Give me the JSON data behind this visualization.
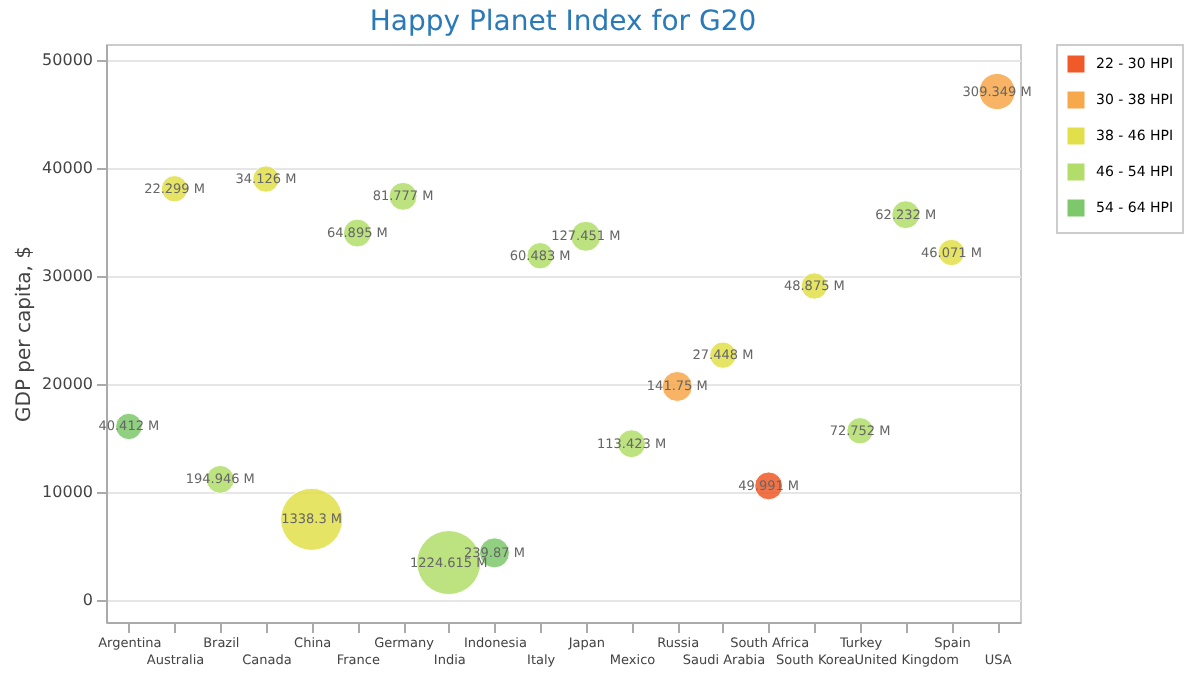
{
  "chart_data": {
    "type": "bubble",
    "title": "Happy Planet Index for G20",
    "ylabel": "GDP per capita, $",
    "categories": [
      "Argentina",
      "Australia",
      "Brazil",
      "Canada",
      "China",
      "France",
      "Germany",
      "India",
      "Indonesia",
      "Italy",
      "Japan",
      "Mexico",
      "Russia",
      "Saudi Arabia",
      "South Africa",
      "South Korea",
      "Turkey",
      "United Kingdom",
      "Spain",
      "USA"
    ],
    "ylim": [
      -2000,
      51500
    ],
    "yticks": [
      0,
      10000,
      20000,
      30000,
      40000,
      50000
    ],
    "grid": "y",
    "legend": "top right",
    "series": [
      {
        "name": "22 - 30 HPI",
        "color": "#f05a28",
        "values": [
          null,
          null,
          null,
          null,
          null,
          null,
          null,
          null,
          null,
          null,
          null,
          null,
          null,
          null,
          10600,
          null,
          null,
          null,
          null,
          null
        ],
        "sizes": [
          null,
          null,
          null,
          null,
          null,
          null,
          null,
          null,
          null,
          null,
          null,
          null,
          null,
          null,
          0.19,
          null,
          null,
          null,
          null,
          null
        ]
      },
      {
        "name": "30 - 38 HPI",
        "color": "#f7a84a",
        "values": [
          null,
          null,
          null,
          null,
          null,
          null,
          null,
          null,
          null,
          null,
          null,
          null,
          19800,
          null,
          null,
          null,
          null,
          null,
          null,
          47100
        ],
        "sizes": [
          null,
          null,
          null,
          null,
          null,
          null,
          null,
          null,
          null,
          null,
          null,
          null,
          0.22,
          null,
          null,
          null,
          null,
          null,
          null,
          0.32
        ]
      },
      {
        "name": "38 - 46 HPI",
        "color": "#e2e04a",
        "values": [
          null,
          38100,
          null,
          39000,
          7500,
          null,
          null,
          null,
          null,
          null,
          null,
          null,
          null,
          22700,
          null,
          29100,
          null,
          null,
          32200,
          null
        ],
        "sizes": [
          null,
          0.17,
          null,
          0.17,
          0.94,
          null,
          null,
          null,
          null,
          null,
          null,
          null,
          null,
          0.17,
          null,
          0.17,
          null,
          null,
          0.17,
          null
        ]
      },
      {
        "name": "46 - 54 HPI",
        "color": "#b2dd6a",
        "values": [
          null,
          null,
          11200,
          null,
          null,
          34000,
          37400,
          3500,
          null,
          31900,
          33700,
          14500,
          null,
          null,
          null,
          null,
          15700,
          35700,
          null,
          null
        ],
        "sizes": [
          null,
          null,
          0.19,
          null,
          null,
          0.19,
          0.19,
          1,
          null,
          0.17,
          0.22,
          0.19,
          null,
          null,
          null,
          null,
          0.17,
          0.19,
          null,
          null
        ]
      },
      {
        "name": "54 - 64 HPI",
        "color": "#7dc86a",
        "values": [
          16100,
          null,
          null,
          null,
          null,
          null,
          null,
          null,
          4400,
          null,
          null,
          null,
          null,
          null,
          null,
          null,
          null,
          null,
          null,
          null
        ],
        "sizes": [
          0.17,
          null,
          null,
          null,
          null,
          null,
          null,
          null,
          0.22,
          null,
          null,
          null,
          null,
          null,
          null,
          null,
          null,
          null,
          null,
          null
        ]
      }
    ],
    "annotations": [
      {
        "text": "40.412 M",
        "x": "Argentina",
        "y": 16100
      },
      {
        "text": "22.299 M",
        "x": "Australia",
        "y": 38100
      },
      {
        "text": "194.946 M",
        "x": "Brazil",
        "y": 11200
      },
      {
        "text": "34.126 M",
        "x": "Canada",
        "y": 39000
      },
      {
        "text": "1338.3 M",
        "x": "China",
        "y": 7500
      },
      {
        "text": "64.895 M",
        "x": "France",
        "y": 34000
      },
      {
        "text": "81.777 M",
        "x": "Germany",
        "y": 37400
      },
      {
        "text": "1224.615 M",
        "x": "India",
        "y": 3500
      },
      {
        "text": "239.87 M",
        "x": "Indonesia",
        "y": 4400
      },
      {
        "text": "60.483 M",
        "x": "Italy",
        "y": 31900
      },
      {
        "text": "127.451 M",
        "x": "Japan",
        "y": 33700
      },
      {
        "text": "113.423 M",
        "x": "Mexico",
        "y": 14500
      },
      {
        "text": "141.75 M",
        "x": "Russia",
        "y": 19800
      },
      {
        "text": "27.448 M",
        "x": "Saudi Arabia",
        "y": 22700
      },
      {
        "text": "49.991 M",
        "x": "South Africa",
        "y": 10600
      },
      {
        "text": "48.875 M",
        "x": "South Korea",
        "y": 29100
      },
      {
        "text": "72.752 M",
        "x": "Turkey",
        "y": 15700
      },
      {
        "text": "62.232 M",
        "x": "United Kingdom",
        "y": 35700
      },
      {
        "text": "46.071 M",
        "x": "Spain",
        "y": 32200
      },
      {
        "text": "309.349 M",
        "x": "USA",
        "y": 47100
      }
    ]
  }
}
